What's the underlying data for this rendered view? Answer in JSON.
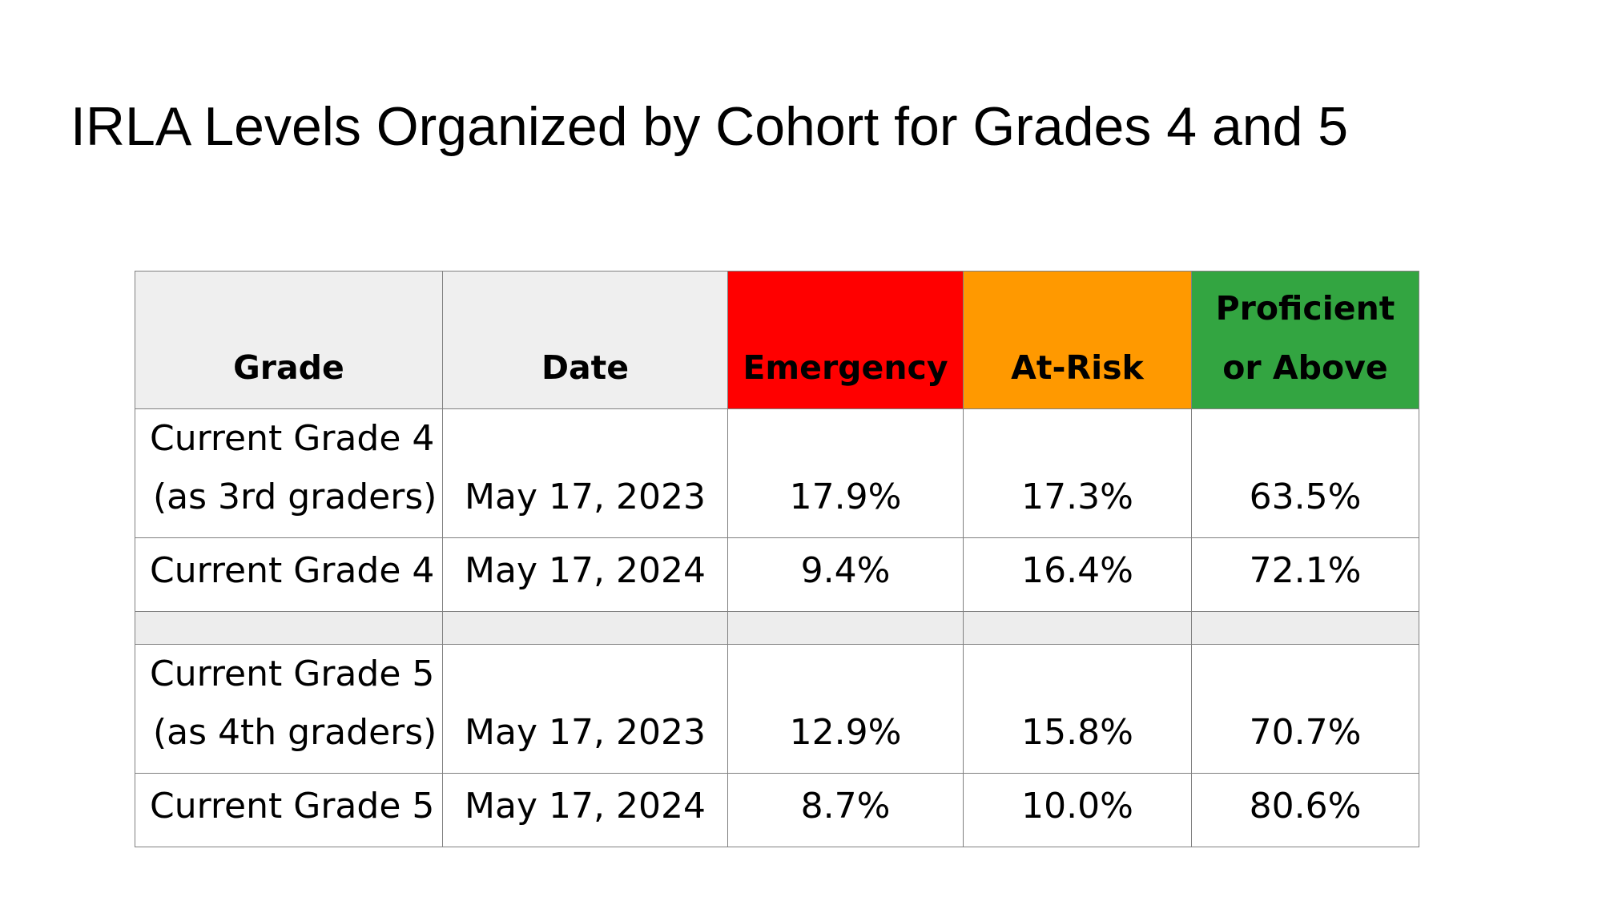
{
  "slide": {
    "title": "IRLA Levels Organized by Cohort for Grades 4 and 5"
  },
  "table": {
    "headers": {
      "grade": "Grade",
      "date": "Date",
      "emergency": "Emergency",
      "at_risk": "At-Risk",
      "proficient_line1": "Proficient",
      "proficient_line2": "or Above"
    },
    "colors": {
      "emergency": "#ff0000",
      "at_risk": "#ff9900",
      "proficient": "#33a541",
      "header_neutral": "#efefef",
      "spacer": "#ededed"
    },
    "rows": [
      {
        "grade_line1": "Current Grade 4",
        "grade_line2": "(as 3rd graders)",
        "date": "May 17, 2023",
        "emergency": "17.9%",
        "at_risk": "17.3%",
        "proficient": "63.5%"
      },
      {
        "grade_line1": "Current Grade 4",
        "date": "May 17, 2024",
        "emergency": "9.4%",
        "at_risk": "16.4%",
        "proficient": "72.1%"
      },
      {
        "grade_line1": "Current Grade 5",
        "grade_line2": "(as 4th graders)",
        "date": "May 17, 2023",
        "emergency": "12.9%",
        "at_risk": "15.8%",
        "proficient": "70.7%"
      },
      {
        "grade_line1": "Current Grade 5",
        "date": "May 17, 2024",
        "emergency": "8.7%",
        "at_risk": "10.0%",
        "proficient": "80.6%"
      }
    ]
  }
}
